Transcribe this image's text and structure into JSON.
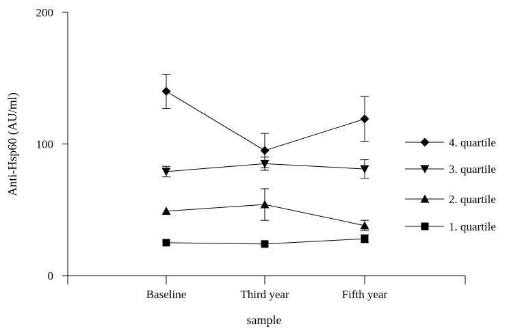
{
  "chart_data": {
    "type": "line",
    "categories": [
      "Baseline",
      "Third year",
      "Fifth year"
    ],
    "xlabel": "sample",
    "ylabel": "Anti-Hsp60 (AU/ml)",
    "ylim": [
      0,
      200
    ],
    "yticks": [
      0,
      100,
      200
    ],
    "grid": false,
    "legend_position": "right",
    "series": [
      {
        "name": "4. quartile",
        "marker": "diamond",
        "values": [
          140,
          95,
          119
        ],
        "errors": [
          13,
          13,
          17
        ]
      },
      {
        "name": "3. quartile",
        "marker": "triangle-down",
        "values": [
          79,
          85,
          81
        ],
        "errors": [
          4,
          5,
          7
        ]
      },
      {
        "name": "2. quartile",
        "marker": "triangle-up",
        "values": [
          49,
          54,
          38
        ],
        "errors": [
          0,
          12,
          4
        ]
      },
      {
        "name": "1. quartile",
        "marker": "square",
        "values": [
          25,
          24,
          28
        ],
        "errors": [
          0,
          0,
          3
        ]
      }
    ]
  }
}
